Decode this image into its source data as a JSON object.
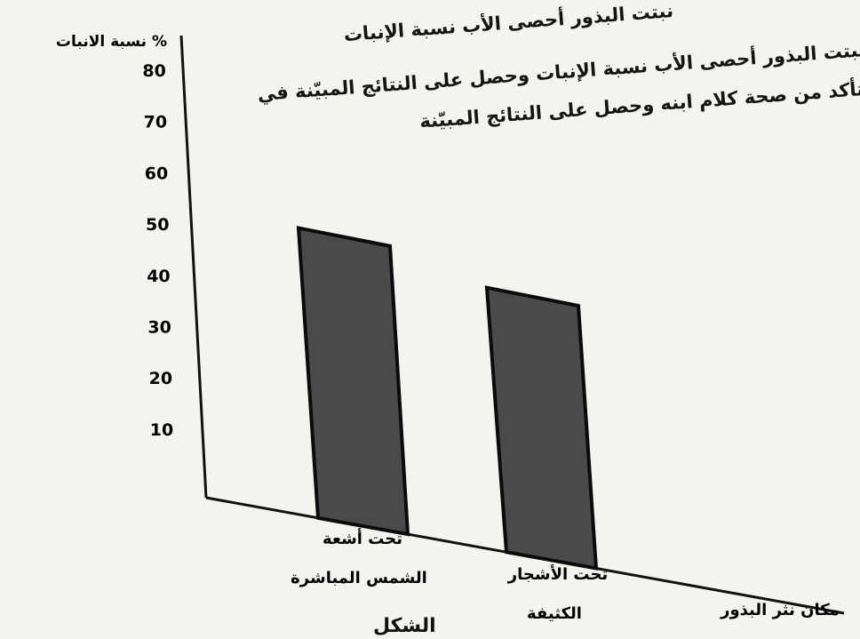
{
  "question": {
    "lines": [
      "نبتت البذور أحصى الأب نسبة الإنبات",
      "نبتت البذور أحصى الأب نسبة الإنبات وحصل على النتائج المبيّنة في",
      "تأكد من صحة كلام ابنه وحصل على النتائج المبيّنة"
    ]
  },
  "chart_data": {
    "type": "bar",
    "ylabel": "نسبة الانبات %",
    "xlabel": "مكان نثر البذور",
    "categories": [
      "تحت أشعة الشمس المباشرة",
      "تحت الأشجار الكثيفة"
    ],
    "category_lines": [
      [
        "تحت أشعة",
        "الشمس المباشرة"
      ],
      [
        "تحت الأشجار",
        "الكثيفة"
      ]
    ],
    "values": [
      55,
      50
    ],
    "yticks": [
      10,
      20,
      30,
      40,
      50,
      60,
      70,
      80
    ],
    "ylim": [
      0,
      90
    ],
    "bar_color": "#4a4a4a",
    "grid": false
  },
  "footer_fragment": "الشكل"
}
